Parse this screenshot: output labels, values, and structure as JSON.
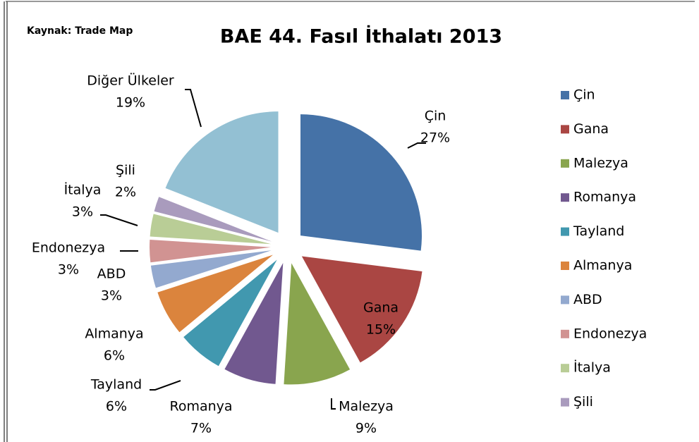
{
  "chart_data": {
    "type": "pie",
    "source": "Kaynak:  Trade Map",
    "title": "BAE 44. Fasıl İthalatı 2013",
    "categories": [
      "Çin",
      "Gana",
      "Malezya",
      "Romanya",
      "Tayland",
      "Almanya",
      "ABD",
      "Endonezya",
      "İtalya",
      "Şili",
      "Diğer Ülkeler"
    ],
    "values": [
      27,
      15,
      9,
      7,
      6,
      6,
      3,
      3,
      3,
      2,
      19
    ],
    "value_labels": [
      "27%",
      "15%",
      "9%",
      "7%",
      "6%",
      "6%",
      "3%",
      "3%",
      "3%",
      "2%",
      "19%"
    ],
    "colors": [
      "#4572a7",
      "#aa4643",
      "#89a54e",
      "#71588f",
      "#4198af",
      "#db843d",
      "#93a9cf",
      "#d19392",
      "#b9cd96",
      "#a99bbd",
      "#93c0d3"
    ],
    "legend": {
      "position": "right",
      "entries": [
        "Çin",
        "Gana",
        "Malezya",
        "Romanya",
        "Tayland",
        "Almanya",
        "ABD",
        "Endonezya",
        "İtalya",
        "Şili"
      ]
    }
  }
}
